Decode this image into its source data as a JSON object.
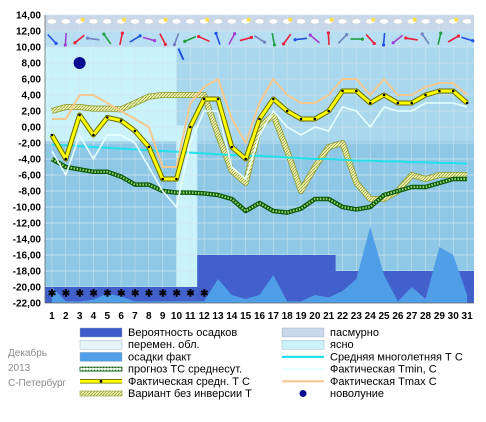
{
  "caption": {
    "month": "Декабрь",
    "year": "2013",
    "city": "С-Петербург"
  },
  "colors": {
    "sky_light": "#c9f2fb",
    "sky_mid": "#a9d8ee",
    "sky_dark": "#8ec8e6",
    "overcast": "#c8d8ea",
    "precip_prob": "#3d5bc9",
    "precip_fact": "#4f9ee8",
    "forecast": "#108010",
    "fact_mean": "#ffff00",
    "climate": "#22e0e8",
    "tmin": "#e8ffff",
    "tmax": "#f5c890",
    "variant": "#d8e080",
    "moon": "#0a0a90"
  },
  "chart_data": {
    "type": "line",
    "x": [
      1,
      2,
      3,
      4,
      5,
      6,
      7,
      8,
      9,
      10,
      11,
      12,
      13,
      14,
      15,
      16,
      17,
      18,
      19,
      20,
      21,
      22,
      23,
      24,
      25,
      26,
      27,
      28,
      29,
      30,
      31
    ],
    "ylim": [
      -22,
      14
    ],
    "yticks": [
      "14,00",
      "12,00",
      "10,00",
      "8,00",
      "6,00",
      "4,00",
      "2,00",
      "0,00",
      "-2,00",
      "-4,00",
      "-6,00",
      "-8,00",
      "-10,00",
      "-12,00",
      "-14,00",
      "-16,00",
      "-18,00",
      "-20,00",
      "-22,00"
    ],
    "xticks": [
      "1",
      "2",
      "3",
      "4",
      "5",
      "6",
      "7",
      "8",
      "9",
      "10",
      "11",
      "12",
      "13",
      "14",
      "15",
      "16",
      "17",
      "18",
      "19",
      "20",
      "21",
      "22",
      "23",
      "24",
      "25",
      "26",
      "27",
      "28",
      "29",
      "30",
      "31"
    ],
    "grid": true,
    "legend_position": "bottom",
    "series": [
      {
        "name": "Фактическая средн. Т С",
        "values": [
          -1,
          -4,
          1.5,
          -1,
          1.2,
          0.8,
          -0.5,
          -2.5,
          -6.5,
          -6.5,
          0,
          3.5,
          3.5,
          -2.5,
          -4,
          1,
          3.5,
          2,
          1,
          1,
          2,
          4.5,
          4.5,
          3,
          4,
          3,
          3,
          4,
          4.5,
          4.5,
          3
        ]
      },
      {
        "name": "Фактическая Tmin, С",
        "values": [
          -3,
          -6,
          -1,
          -4,
          -1,
          -1,
          -2,
          -5,
          -8,
          -10,
          -2,
          2,
          2,
          -5,
          -6.5,
          -1,
          2,
          0,
          -1,
          0,
          -0.5,
          2.5,
          2,
          0,
          2.5,
          2,
          2,
          3,
          3,
          3,
          2.5
        ]
      },
      {
        "name": "Фактическая Tmax С",
        "values": [
          1,
          1,
          4,
          4,
          3,
          2,
          1,
          0,
          -5,
          -5,
          3,
          5,
          6,
          1,
          -2,
          3,
          6,
          4,
          3,
          3,
          4,
          6,
          6,
          4,
          6,
          4,
          4,
          5,
          5.5,
          5.5,
          4
        ]
      },
      {
        "name": "прогноз TC среднесут.",
        "values": [
          -4,
          -5,
          -5.3,
          -5.6,
          -5.6,
          -6.2,
          -7.2,
          -7.2,
          -8,
          -8.2,
          -8.2,
          -8.3,
          -8.5,
          -9,
          -10.5,
          -9.5,
          -10.5,
          -10.7,
          -10.2,
          -9,
          -9,
          -10,
          -10.3,
          -10,
          -8.5,
          -8,
          -7.5,
          -7.5,
          -7,
          -6.5,
          -6.5
        ]
      },
      {
        "name": "Средняя многолетняя Т С",
        "values": [
          -2.2,
          -2.3,
          -2.4,
          -2.5,
          -2.6,
          -2.7,
          -2.8,
          -2.9,
          -3,
          -3.1,
          -3.2,
          -3.3,
          -3.4,
          -3.5,
          -3.6,
          -3.6,
          -3.7,
          -3.8,
          -3.9,
          -4,
          -4,
          -4.1,
          -4.2,
          -4.2,
          -4.3,
          -4.3,
          -4.4,
          -4.4,
          -4.5,
          -4.5,
          -4.6
        ]
      },
      {
        "name": "Вариант без инверсии Т",
        "values": [
          2,
          2.5,
          2.5,
          2.3,
          2.3,
          2.2,
          3,
          3.8,
          4,
          4,
          4,
          4,
          -1,
          -5.5,
          -7,
          0,
          1.5,
          -3,
          -8,
          -5,
          -2.5,
          -2,
          -7,
          -9,
          -9,
          -8,
          -6,
          -6.5,
          -6,
          -6,
          -6
        ]
      },
      {
        "name": "Вероятность осадков",
        "values": [
          -20,
          -20,
          -20,
          -20,
          -20,
          -20,
          -20,
          -20,
          -20,
          -20,
          -20,
          -16,
          -16,
          -16,
          -16,
          -16,
          -16,
          -16,
          -16,
          -16,
          -16,
          -18,
          -18,
          -18,
          -18,
          -18,
          -18,
          -18,
          -18,
          -18,
          -18
        ]
      },
      {
        "name": "осадки факт",
        "values": [
          -20,
          -21.8,
          -21.8,
          -21.6,
          -20.8,
          -21.2,
          -21.8,
          -21.8,
          -21.8,
          -21.8,
          -21.8,
          -21.8,
          -19,
          -21,
          -21.5,
          -21,
          -18.5,
          -21.8,
          -21.8,
          -21,
          -21.3,
          -20.5,
          -19,
          -12.5,
          -18.5,
          -21.8,
          -20,
          -21.5,
          -15,
          -16,
          -21
        ]
      }
    ],
    "bands": [
      {
        "name": "пасмурно",
        "from": 0.5,
        "to": 10,
        "ymax": 10
      },
      {
        "name": "перемен. обл.",
        "from": 10,
        "to": 31.5,
        "ymax": 10
      },
      {
        "name": "ясно",
        "from": 10,
        "to": 11.5,
        "ymax": 0
      }
    ],
    "events": [
      {
        "name": "новолуние",
        "day": 3,
        "y": 8
      }
    ],
    "legend": [
      {
        "label": "Вероятность осадков",
        "kind": "box",
        "color": "#3d5bc9"
      },
      {
        "label": "пасмурно",
        "kind": "box",
        "color": "#c8d8ea"
      },
      {
        "label": "перемен. обл.",
        "kind": "box",
        "color": "#e6f3fa"
      },
      {
        "label": "ясно",
        "kind": "box",
        "color": "#c9f2fb"
      },
      {
        "label": "осадки факт",
        "kind": "box",
        "color": "#4f9ee8"
      },
      {
        "label": "Средняя многолетняя Т С",
        "kind": "line",
        "color": "#22e0e8"
      },
      {
        "label": "прогноз TC среднесут.",
        "kind": "dots",
        "color": "#108010"
      },
      {
        "label": "Фактическая Tmin, С",
        "kind": "line",
        "color": "#e8ffff"
      },
      {
        "label": "Фактическая средн. Т С",
        "kind": "mean",
        "color": "#ffff00"
      },
      {
        "label": "Фактическая Tmax С",
        "kind": "line",
        "color": "#f5c890"
      },
      {
        "label": "Вариант без инверсии Т",
        "kind": "hatch",
        "color": "#d8e080"
      },
      {
        "label": "новолуние",
        "kind": "moon",
        "color": "#0a0a90"
      }
    ]
  }
}
